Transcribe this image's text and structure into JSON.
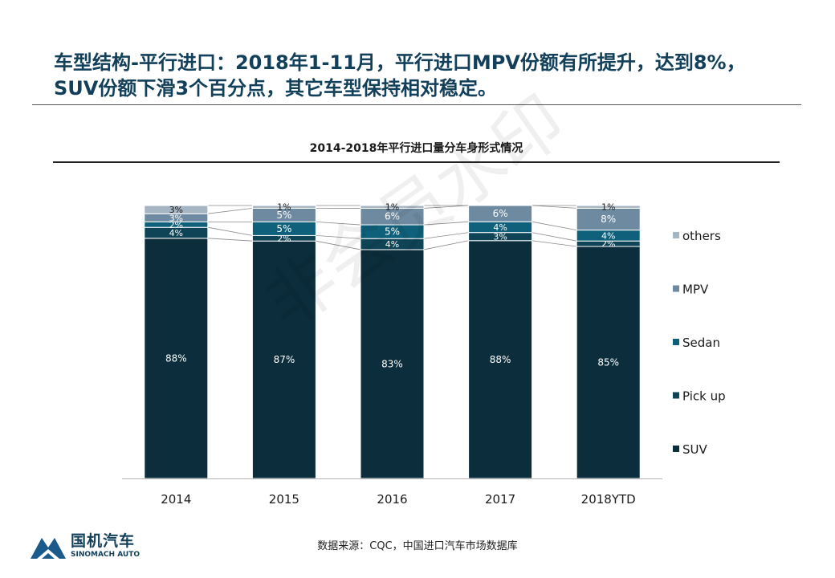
{
  "headline": {
    "line1": "车型结构-平行进口：2018年1-11月，平行进口MPV份额有所提升，达到8%，",
    "line2": "SUV份额下滑3个百分点，其它车型保持相对稳定。"
  },
  "watermark": "非会员水印",
  "source": "数据来源：CQC，中国进口汽车市场数据库",
  "logo": {
    "cn": "国机汽车",
    "en": "SINOMACH AUTO",
    "color": "#1b5b8c"
  },
  "chart_data": {
    "type": "bar",
    "stacked": true,
    "title": "2014-2018年平行进口量分车身形式情况",
    "categories": [
      "2014",
      "2015",
      "2016",
      "2017",
      "2018YTD"
    ],
    "series": [
      {
        "name": "SUV",
        "color": "#0c2d3b",
        "values": [
          88,
          87,
          83,
          88,
          85
        ],
        "labels": [
          "88%",
          "87%",
          "83%",
          "88%",
          "85%"
        ]
      },
      {
        "name": "Pick up",
        "color": "#0f4457",
        "values": [
          4,
          2,
          4,
          3,
          2
        ],
        "labels": [
          "4%",
          "2%",
          "4%",
          "3%",
          "2%"
        ]
      },
      {
        "name": "Sedan",
        "color": "#0f617b",
        "values": [
          2,
          5,
          5,
          4,
          4
        ],
        "labels": [
          "2%",
          "5%",
          "5%",
          "4%",
          "4%"
        ]
      },
      {
        "name": "MPV",
        "color": "#6e8aa0",
        "values": [
          3,
          5,
          6,
          6,
          8
        ],
        "labels": [
          "3%",
          "5%",
          "6%",
          "6%",
          "8%"
        ]
      },
      {
        "name": "others",
        "color": "#a5b5c4",
        "values": [
          3,
          1,
          1,
          0,
          1
        ],
        "labels": [
          "3%",
          "1%",
          "1%",
          "",
          "1%"
        ]
      }
    ],
    "legend_position": "right",
    "legend_order": [
      "others",
      "MPV",
      "Sedan",
      "Pick up",
      "SUV"
    ],
    "series_lines": true,
    "grid": false
  }
}
